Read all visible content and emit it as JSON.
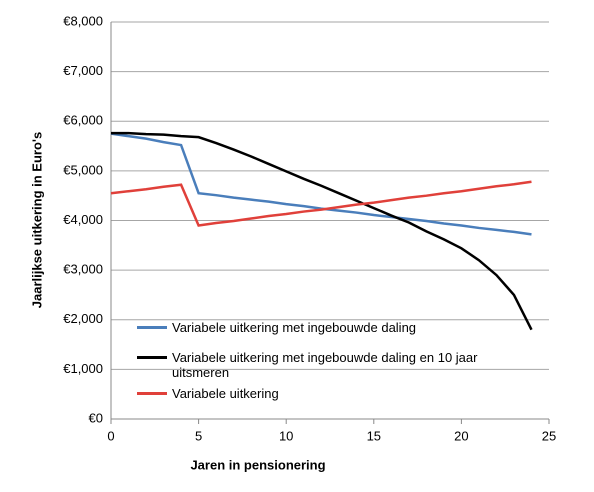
{
  "chart_data": {
    "type": "line",
    "x_label": "Jaren in pensionering",
    "y_label": "Jaarlijkse uitkering in Euro's",
    "x": [
      0,
      1,
      2,
      3,
      4,
      5,
      6,
      7,
      8,
      9,
      10,
      11,
      12,
      13,
      14,
      15,
      16,
      17,
      18,
      19,
      20,
      21,
      22,
      23,
      24
    ],
    "series": [
      {
        "name": "Variabele uitkering met ingebouwde daling",
        "color": "#4a7ebb",
        "values": [
          5750,
          5700,
          5650,
          5580,
          5520,
          4550,
          4510,
          4460,
          4420,
          4380,
          4330,
          4290,
          4240,
          4200,
          4160,
          4110,
          4070,
          4030,
          3990,
          3940,
          3900,
          3850,
          3810,
          3770,
          3720
        ]
      },
      {
        "name": "Variabele uitkering met ingebouwde daling en 10 jaar uitsmeren",
        "color": "#000000",
        "values": [
          5760,
          5760,
          5740,
          5730,
          5700,
          5680,
          5560,
          5430,
          5290,
          5140,
          4990,
          4840,
          4700,
          4550,
          4400,
          4250,
          4100,
          3960,
          3780,
          3620,
          3440,
          3200,
          2900,
          2500,
          1800
        ]
      },
      {
        "name": "Variabele uitkering",
        "color": "#e0403a",
        "values": [
          4550,
          4590,
          4630,
          4680,
          4720,
          3900,
          3950,
          3990,
          4040,
          4090,
          4130,
          4180,
          4220,
          4270,
          4320,
          4360,
          4410,
          4460,
          4500,
          4550,
          4590,
          4640,
          4690,
          4730,
          4780
        ]
      }
    ],
    "xlim": [
      0,
      25
    ],
    "xticks": [
      0,
      5,
      10,
      15,
      20,
      25
    ],
    "ylim": [
      0,
      8000
    ],
    "yticks": [
      {
        "value": 0,
        "label": "€0"
      },
      {
        "value": 1000,
        "label": "€1,000"
      },
      {
        "value": 2000,
        "label": "€2,000"
      },
      {
        "value": 3000,
        "label": "€3,000"
      },
      {
        "value": 4000,
        "label": "€4,000"
      },
      {
        "value": 5000,
        "label": "€5,000"
      },
      {
        "value": 6000,
        "label": "€6,000"
      },
      {
        "value": 7000,
        "label": "€7,000"
      },
      {
        "value": 8000,
        "label": "€8,000"
      }
    ],
    "grid": true
  }
}
